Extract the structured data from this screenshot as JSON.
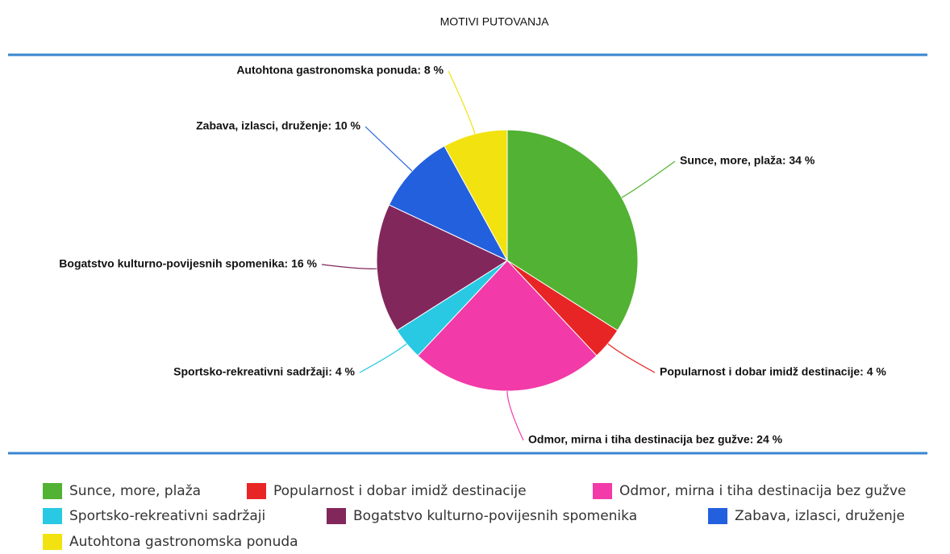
{
  "chart_data": {
    "type": "pie",
    "title": "MOTIVI PUTOVANJA",
    "categories": [
      "Sunce, more, plaža",
      "Popularnost i dobar imidž destinacije",
      "Odmor, mirna i tiha destinacija bez gužve",
      "Sportsko-rekreativni sadržaji",
      "Bogatstvo kulturno-povijesnih spomenika",
      "Zabava, izlasci, druženje",
      "Autohtona gastronomska ponuda"
    ],
    "values": [
      34,
      4,
      24,
      4,
      16,
      10,
      8
    ],
    "value_labels": [
      "Sunce, more, plaža: 34 %",
      "Popularnost i dobar imidž destinacije: 4 %",
      "Odmor, mirna i tiha destinacija bez gužve: 24 %",
      "Sportsko-rekreativni sadržaji: 4 %",
      "Bogatstvo kulturno-povijesnih spomenika: 16 %",
      "Zabava, izlasci, druženje: 10 %",
      "Autohtona gastronomska ponuda: 8 %"
    ],
    "colors": [
      "#52b233",
      "#e82525",
      "#f23aa8",
      "#29c9e3",
      "#82275c",
      "#2360de",
      "#f2e20f"
    ]
  }
}
